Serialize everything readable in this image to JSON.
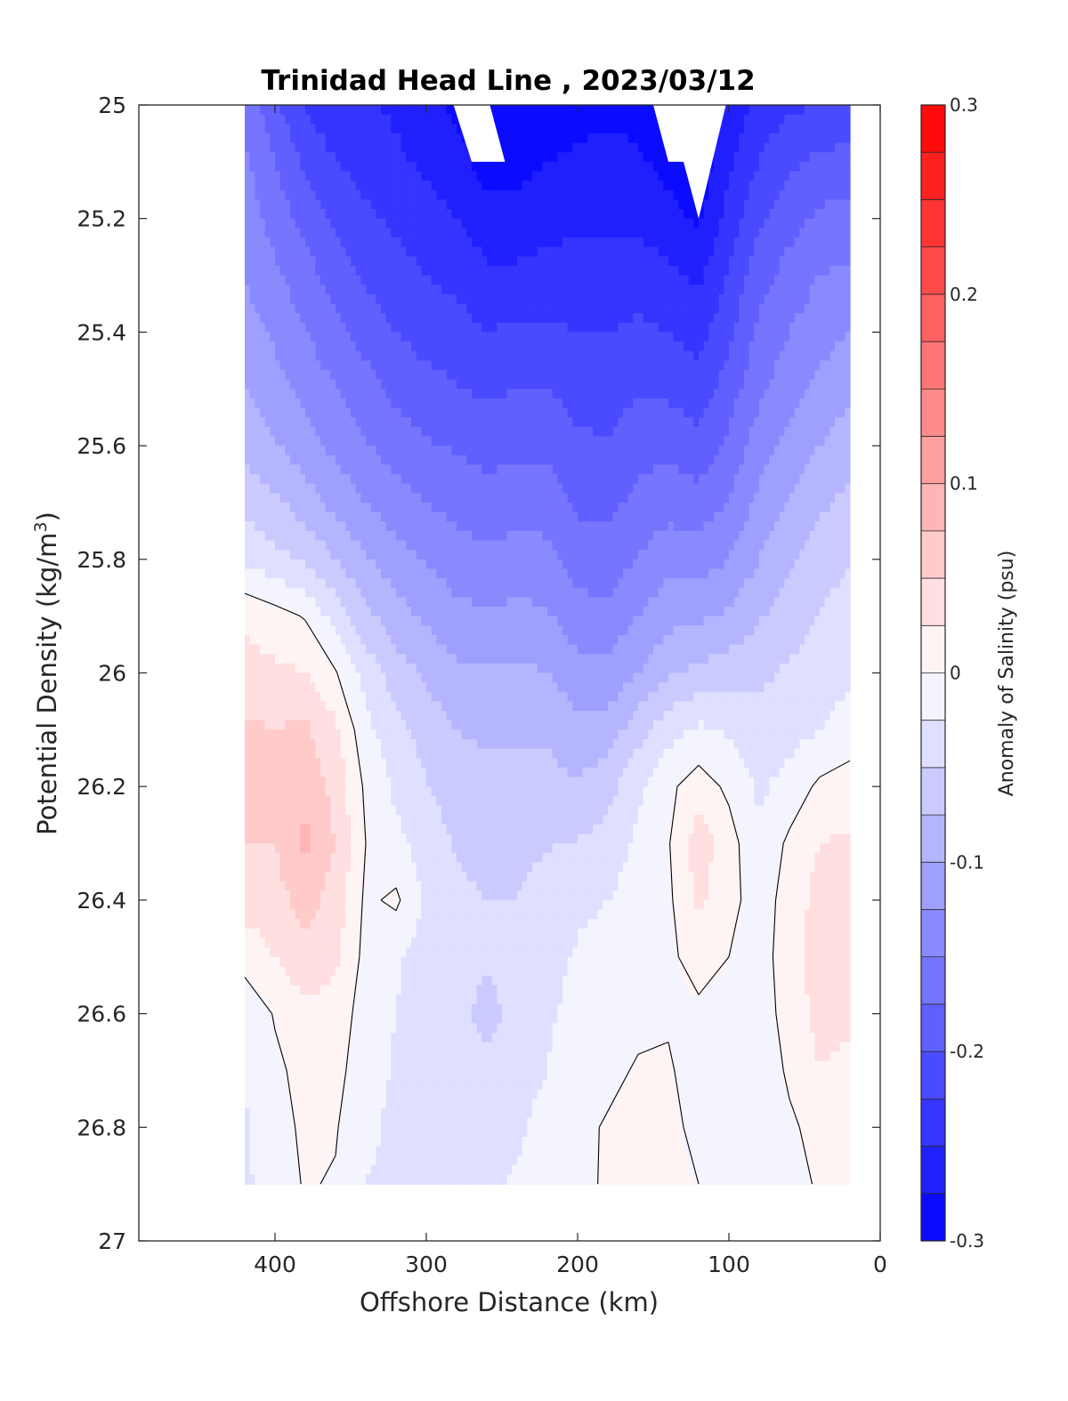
{
  "chart_data": {
    "type": "contourf",
    "title": "Trinidad Head Line , 2023/03/12",
    "xlabel": "Offshore Distance (km)",
    "ylabel": "Potential Density (kg/m",
    "ylabel_sup": "3",
    "ylabel_close": ")",
    "xlim": [
      490,
      0
    ],
    "ylim": [
      25,
      27
    ],
    "x_reversed": true,
    "y_reversed": true,
    "xticks": [
      400,
      300,
      200,
      100,
      0
    ],
    "xtick_labels": [
      "400",
      "300",
      "200",
      "100",
      "0"
    ],
    "yticks": [
      25,
      25.2,
      25.4,
      25.6,
      25.8,
      26,
      26.2,
      26.4,
      26.6,
      26.8,
      27
    ],
    "ytick_labels": [
      "25",
      "25.2",
      "25.4",
      "25.6",
      "25.8",
      "26",
      "26.2",
      "26.4",
      "26.6",
      "26.8",
      "27"
    ],
    "colorbar": {
      "label": "Anomaly of Salinity (psu)",
      "range": [
        -0.3,
        0.3
      ],
      "ticks": [
        0.3,
        0.2,
        0.1,
        0,
        -0.1,
        -0.2,
        -0.3
      ],
      "tick_labels": [
        "0.3",
        "0.2",
        "0.1",
        "0",
        "-0.1",
        "-0.2",
        "-0.3"
      ],
      "levels": 24,
      "neg_color": "#0000ff",
      "pos_color": "#ff0000"
    },
    "x": [
      420,
      400,
      380,
      360,
      340,
      320,
      300,
      280,
      260,
      240,
      220,
      200,
      180,
      160,
      140,
      120,
      100,
      80,
      60,
      40,
      20
    ],
    "y": [
      25.0,
      25.1,
      25.2,
      25.3,
      25.4,
      25.5,
      25.6,
      25.7,
      25.8,
      25.9,
      26.0,
      26.1,
      26.2,
      26.3,
      26.4,
      26.5,
      26.6,
      26.7,
      26.8,
      26.9
    ],
    "z": [
      [
        -0.155,
        -0.195,
        -0.225,
        -0.245,
        -0.245,
        -0.255,
        -0.265,
        -0.28,
        -0.3,
        -0.3,
        -0.29,
        -0.285,
        -0.28,
        -0.285,
        -0.3,
        -0.3,
        -0.27,
        -0.24,
        -0.23,
        -0.225,
        -0.22
      ],
      [
        -0.145,
        -0.175,
        -0.205,
        -0.225,
        -0.235,
        -0.245,
        -0.255,
        -0.265,
        -0.285,
        -0.285,
        -0.275,
        -0.27,
        -0.268,
        -0.27,
        -0.285,
        -0.295,
        -0.255,
        -0.225,
        -0.205,
        -0.195,
        -0.19
      ],
      [
        -0.135,
        -0.16,
        -0.185,
        -0.205,
        -0.22,
        -0.23,
        -0.24,
        -0.25,
        -0.265,
        -0.265,
        -0.26,
        -0.255,
        -0.255,
        -0.255,
        -0.265,
        -0.28,
        -0.24,
        -0.205,
        -0.185,
        -0.17,
        -0.165
      ],
      [
        -0.125,
        -0.145,
        -0.165,
        -0.185,
        -0.205,
        -0.215,
        -0.225,
        -0.232,
        -0.245,
        -0.245,
        -0.24,
        -0.24,
        -0.24,
        -0.238,
        -0.245,
        -0.255,
        -0.222,
        -0.185,
        -0.165,
        -0.15,
        -0.145
      ],
      [
        -0.115,
        -0.13,
        -0.15,
        -0.168,
        -0.185,
        -0.2,
        -0.21,
        -0.215,
        -0.225,
        -0.22,
        -0.22,
        -0.225,
        -0.225,
        -0.22,
        -0.225,
        -0.235,
        -0.205,
        -0.17,
        -0.15,
        -0.135,
        -0.125
      ],
      [
        -0.1,
        -0.115,
        -0.132,
        -0.15,
        -0.165,
        -0.182,
        -0.192,
        -0.198,
        -0.205,
        -0.2,
        -0.2,
        -0.21,
        -0.212,
        -0.202,
        -0.205,
        -0.215,
        -0.188,
        -0.155,
        -0.135,
        -0.118,
        -0.105
      ],
      [
        -0.085,
        -0.098,
        -0.115,
        -0.132,
        -0.148,
        -0.162,
        -0.172,
        -0.178,
        -0.185,
        -0.18,
        -0.18,
        -0.195,
        -0.198,
        -0.185,
        -0.182,
        -0.192,
        -0.168,
        -0.138,
        -0.118,
        -0.1,
        -0.085
      ],
      [
        -0.058,
        -0.07,
        -0.088,
        -0.108,
        -0.125,
        -0.14,
        -0.15,
        -0.158,
        -0.165,
        -0.16,
        -0.162,
        -0.18,
        -0.182,
        -0.168,
        -0.16,
        -0.165,
        -0.148,
        -0.118,
        -0.098,
        -0.08,
        -0.068
      ],
      [
        -0.03,
        -0.042,
        -0.055,
        -0.075,
        -0.098,
        -0.115,
        -0.128,
        -0.138,
        -0.145,
        -0.14,
        -0.142,
        -0.162,
        -0.165,
        -0.148,
        -0.135,
        -0.138,
        -0.125,
        -0.1,
        -0.08,
        -0.062,
        -0.05
      ],
      [
        0.02,
        0.01,
        -0.002,
        -0.035,
        -0.068,
        -0.09,
        -0.105,
        -0.118,
        -0.122,
        -0.118,
        -0.122,
        -0.14,
        -0.142,
        -0.125,
        -0.108,
        -0.105,
        -0.095,
        -0.078,
        -0.062,
        -0.048,
        -0.04
      ],
      [
        0.035,
        0.03,
        0.025,
        0.002,
        -0.035,
        -0.062,
        -0.08,
        -0.095,
        -0.098,
        -0.095,
        -0.1,
        -0.115,
        -0.118,
        -0.1,
        -0.078,
        -0.068,
        -0.062,
        -0.055,
        -0.046,
        -0.038,
        -0.03
      ],
      [
        0.055,
        0.05,
        0.055,
        0.03,
        -0.018,
        -0.042,
        -0.06,
        -0.075,
        -0.08,
        -0.078,
        -0.08,
        -0.092,
        -0.09,
        -0.06,
        -0.035,
        -0.02,
        -0.028,
        -0.04,
        -0.035,
        -0.025,
        -0.012
      ],
      [
        0.055,
        0.052,
        0.068,
        0.042,
        -0.005,
        -0.03,
        -0.048,
        -0.062,
        -0.068,
        -0.066,
        -0.066,
        -0.072,
        -0.06,
        -0.03,
        -0.005,
        0.012,
        -0.005,
        -0.03,
        -0.015,
        0.005,
        0.01
      ],
      [
        0.05,
        0.05,
        0.082,
        0.048,
        0.0,
        -0.018,
        -0.038,
        -0.052,
        -0.058,
        -0.056,
        -0.052,
        -0.048,
        -0.04,
        -0.02,
        -0.002,
        0.04,
        0.01,
        -0.02,
        0.005,
        0.025,
        0.03
      ],
      [
        0.035,
        0.04,
        0.06,
        0.04,
        -0.005,
        0.005,
        -0.03,
        -0.045,
        -0.05,
        -0.05,
        -0.04,
        -0.03,
        -0.025,
        -0.012,
        -0.005,
        0.03,
        0.008,
        -0.012,
        0.01,
        0.035,
        0.04
      ],
      [
        0.01,
        0.025,
        0.045,
        0.03,
        -0.008,
        -0.022,
        -0.035,
        -0.042,
        -0.045,
        -0.045,
        -0.035,
        -0.022,
        -0.018,
        -0.008,
        -0.005,
        0.01,
        0.0,
        -0.01,
        0.012,
        0.038,
        0.042
      ],
      [
        -0.018,
        0.002,
        0.018,
        0.015,
        -0.012,
        -0.025,
        -0.035,
        -0.04,
        -0.06,
        -0.04,
        -0.03,
        -0.015,
        -0.012,
        -0.005,
        -0.002,
        -0.005,
        -0.008,
        -0.01,
        0.008,
        0.035,
        0.04
      ],
      [
        -0.022,
        -0.005,
        0.008,
        0.008,
        -0.015,
        -0.028,
        -0.035,
        -0.038,
        -0.04,
        -0.035,
        -0.025,
        -0.01,
        -0.005,
        0.002,
        0.002,
        -0.008,
        -0.012,
        -0.02,
        0.005,
        0.025,
        0.01
      ],
      [
        -0.028,
        -0.01,
        0.005,
        0.002,
        -0.02,
        -0.03,
        -0.035,
        -0.036,
        -0.036,
        -0.03,
        -0.015,
        -0.005,
        0.002,
        0.008,
        0.004,
        -0.004,
        -0.012,
        -0.015,
        -0.005,
        0.01,
        0.005
      ],
      [
        -0.03,
        -0.012,
        0.002,
        -0.002,
        -0.025,
        -0.03,
        -0.03,
        -0.03,
        -0.03,
        -0.022,
        -0.008,
        -0.002,
        0.001,
        0.003,
        0.002,
        0.0,
        -0.005,
        -0.008,
        -0.006,
        0.002,
        0.002
      ]
    ],
    "voids": [
      {
        "x": [
          282,
          258,
          248,
          270
        ],
        "y": [
          25.0,
          25.0,
          25.1,
          25.1
        ]
      },
      {
        "x": [
          150,
          102,
          120,
          130,
          140
        ],
        "y": [
          25.0,
          25.0,
          25.2,
          25.1,
          25.1
        ]
      }
    ]
  }
}
